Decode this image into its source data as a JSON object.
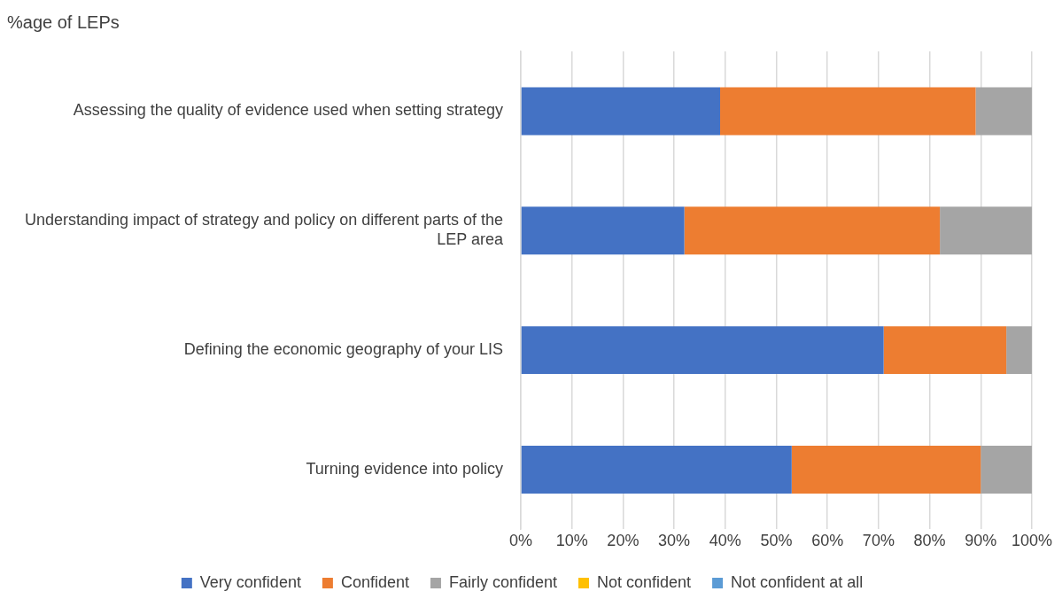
{
  "chart_data": {
    "type": "bar",
    "orientation": "horizontal",
    "stacked": true,
    "title": "%age of LEPs",
    "categories": [
      "Assessing the quality of evidence used when setting strategy",
      "Understanding impact of strategy and policy on different parts of the LEP area",
      "Defining the economic geography of your LIS",
      "Turning evidence into policy"
    ],
    "series": [
      {
        "name": "Very confident",
        "color": "#4472c4",
        "values": [
          39,
          32,
          71,
          53
        ]
      },
      {
        "name": "Confident",
        "color": "#ed7d31",
        "values": [
          50,
          50,
          24,
          37
        ]
      },
      {
        "name": "Fairly confident",
        "color": "#a5a5a5",
        "values": [
          11,
          18,
          5,
          10
        ]
      },
      {
        "name": "Not confident",
        "color": "#ffc000",
        "values": [
          0,
          0,
          0,
          0
        ]
      },
      {
        "name": "Not confident at all",
        "color": "#5b9bd5",
        "values": [
          0,
          0,
          0,
          0
        ]
      }
    ],
    "xlim": [
      0,
      100
    ],
    "xticks": [
      {
        "value": 0,
        "label": "0%"
      },
      {
        "value": 10,
        "label": "10%"
      },
      {
        "value": 20,
        "label": "20%"
      },
      {
        "value": 30,
        "label": "30%"
      },
      {
        "value": 40,
        "label": "40%"
      },
      {
        "value": 50,
        "label": "50%"
      },
      {
        "value": 60,
        "label": "60%"
      },
      {
        "value": 70,
        "label": "70%"
      },
      {
        "value": 80,
        "label": "80%"
      },
      {
        "value": 90,
        "label": "90%"
      },
      {
        "value": 100,
        "label": "100%"
      }
    ],
    "grid": "x",
    "legend": "bottom"
  }
}
